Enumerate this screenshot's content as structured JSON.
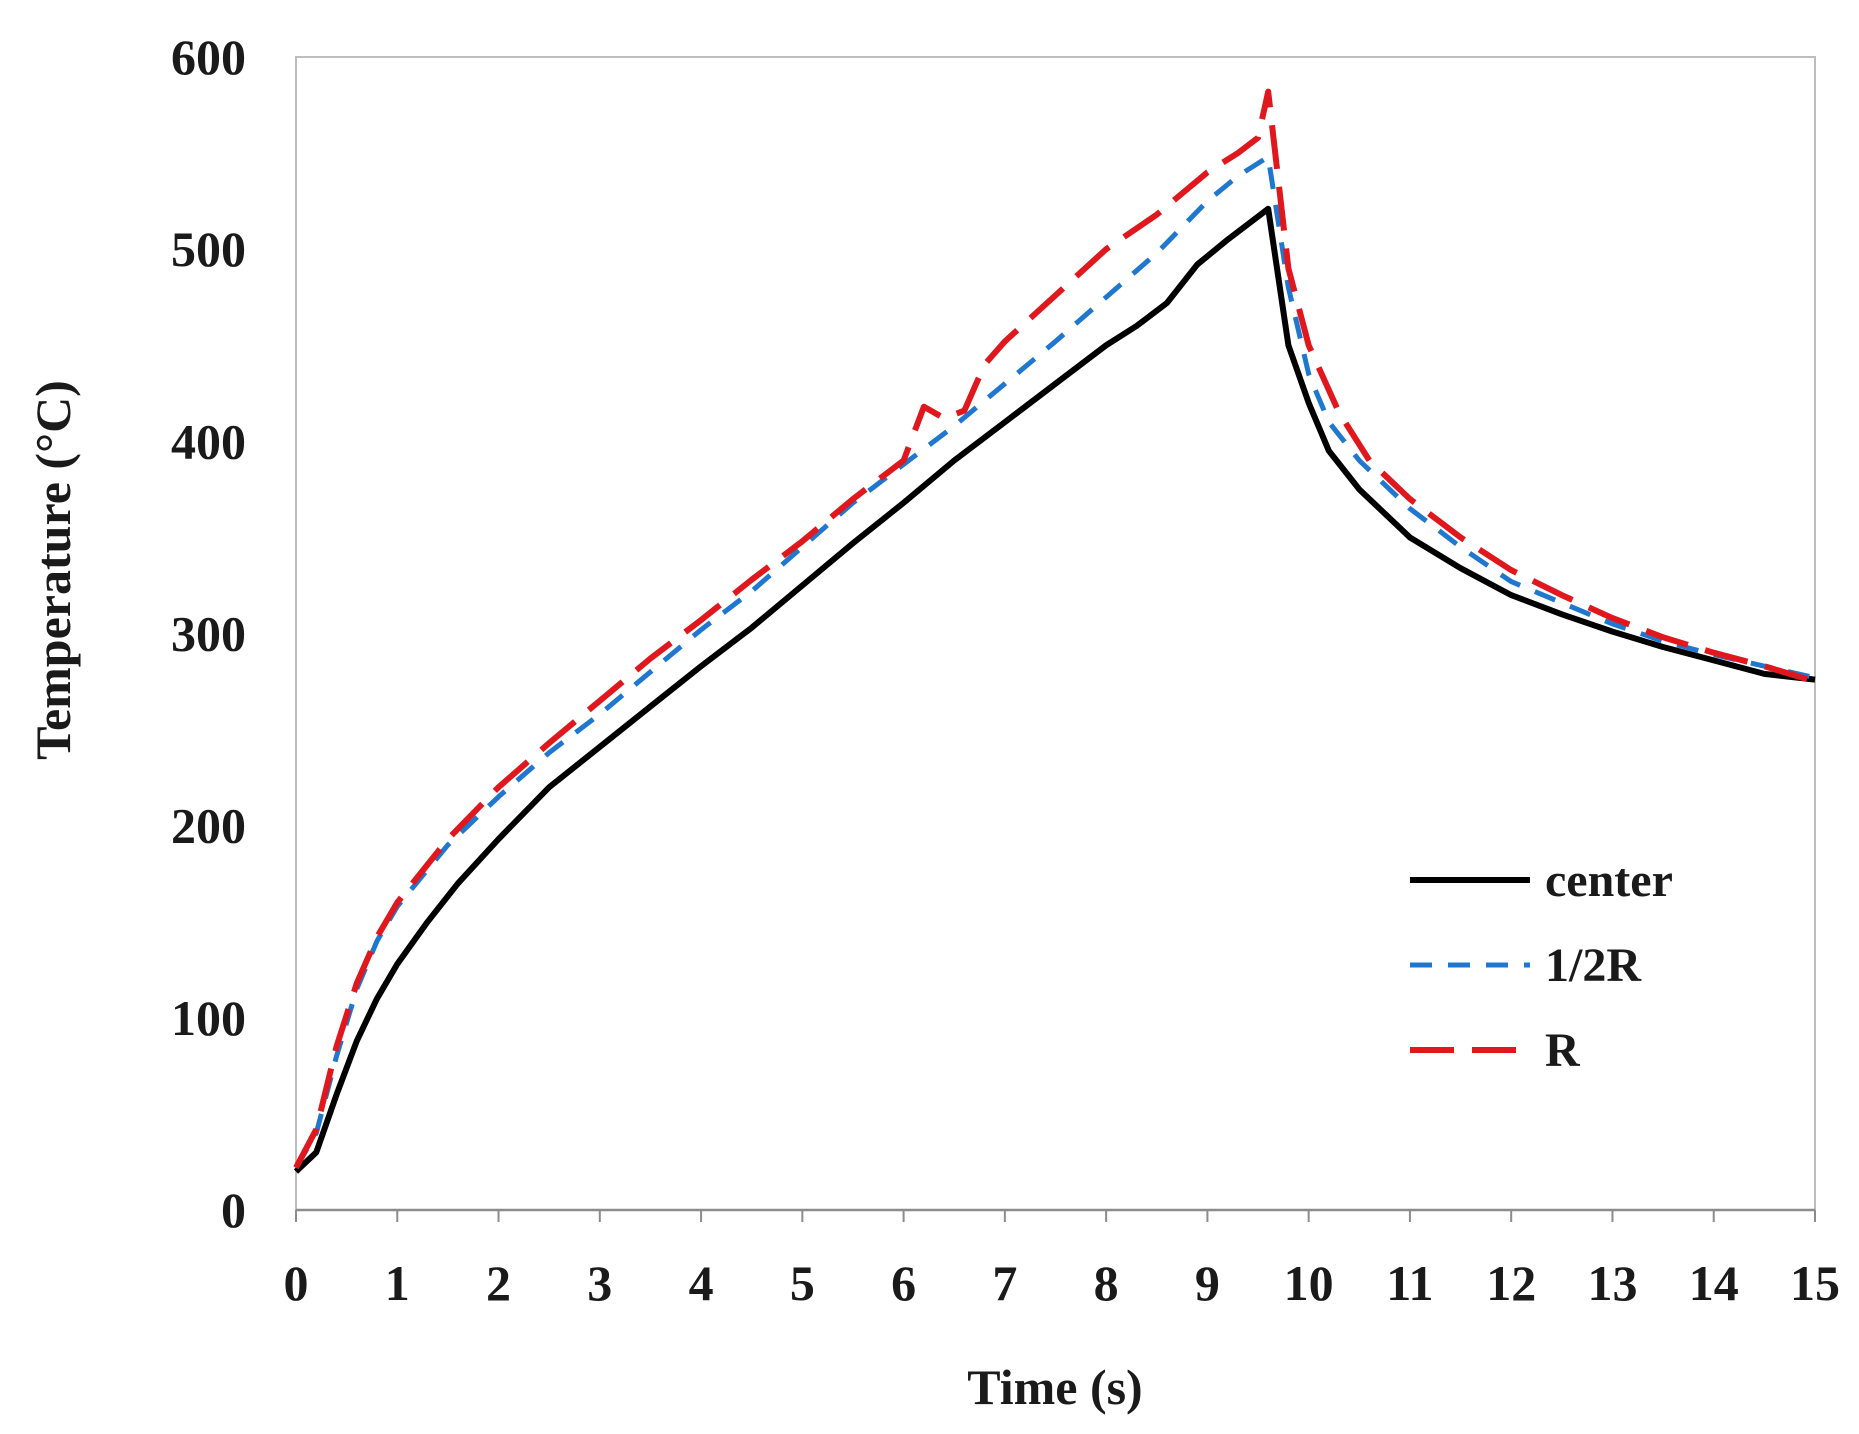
{
  "chart_data": {
    "type": "line",
    "title": "",
    "xlabel": "Time (s)",
    "ylabel": "Temperature (°C)",
    "xlim": [
      0,
      15
    ],
    "ylim": [
      0,
      600
    ],
    "x_ticks": [
      "0",
      "1",
      "2",
      "3",
      "4",
      "5",
      "6",
      "7",
      "8",
      "9",
      "10",
      "11",
      "12",
      "13",
      "14",
      "15"
    ],
    "y_ticks": [
      "0",
      "100",
      "200",
      "300",
      "400",
      "500",
      "600"
    ],
    "grid": false,
    "legend_position": "right",
    "series": [
      {
        "name": "center",
        "color": "#000000",
        "style": "solid",
        "points": [
          [
            0,
            20
          ],
          [
            0.2,
            30
          ],
          [
            0.4,
            60
          ],
          [
            0.6,
            88
          ],
          [
            0.8,
            110
          ],
          [
            1.0,
            128
          ],
          [
            1.3,
            150
          ],
          [
            1.6,
            170
          ],
          [
            2.0,
            193
          ],
          [
            2.5,
            220
          ],
          [
            3.0,
            241
          ],
          [
            3.5,
            262
          ],
          [
            4.0,
            283
          ],
          [
            4.5,
            303
          ],
          [
            5.0,
            325
          ],
          [
            5.5,
            347
          ],
          [
            6.0,
            368
          ],
          [
            6.5,
            390
          ],
          [
            7.0,
            410
          ],
          [
            7.5,
            430
          ],
          [
            8.0,
            450
          ],
          [
            8.3,
            460
          ],
          [
            8.6,
            472
          ],
          [
            8.9,
            492
          ],
          [
            9.2,
            505
          ],
          [
            9.4,
            513
          ],
          [
            9.6,
            521
          ],
          [
            9.8,
            450
          ],
          [
            10.0,
            420
          ],
          [
            10.2,
            395
          ],
          [
            10.5,
            375
          ],
          [
            11.0,
            350
          ],
          [
            11.5,
            334
          ],
          [
            12.0,
            320
          ],
          [
            12.5,
            310
          ],
          [
            13.0,
            301
          ],
          [
            13.5,
            293
          ],
          [
            14.0,
            286
          ],
          [
            14.5,
            279
          ],
          [
            15.0,
            276
          ]
        ]
      },
      {
        "name": "1/2R",
        "color": "#1f77d0",
        "style": "dashed",
        "points": [
          [
            0,
            22
          ],
          [
            0.2,
            40
          ],
          [
            0.4,
            80
          ],
          [
            0.6,
            115
          ],
          [
            0.8,
            140
          ],
          [
            1.0,
            158
          ],
          [
            1.5,
            190
          ],
          [
            2.0,
            215
          ],
          [
            2.5,
            238
          ],
          [
            3.0,
            258
          ],
          [
            3.5,
            280
          ],
          [
            4.0,
            302
          ],
          [
            4.5,
            322
          ],
          [
            5.0,
            345
          ],
          [
            5.5,
            368
          ],
          [
            6.0,
            388
          ],
          [
            6.5,
            408
          ],
          [
            7.0,
            430
          ],
          [
            7.5,
            452
          ],
          [
            8.0,
            475
          ],
          [
            8.5,
            498
          ],
          [
            9.0,
            525
          ],
          [
            9.3,
            538
          ],
          [
            9.6,
            548
          ],
          [
            9.8,
            480
          ],
          [
            10.0,
            435
          ],
          [
            10.2,
            410
          ],
          [
            10.5,
            390
          ],
          [
            11.0,
            365
          ],
          [
            11.5,
            345
          ],
          [
            12.0,
            327
          ],
          [
            12.5,
            316
          ],
          [
            13.0,
            305
          ],
          [
            13.5,
            296
          ],
          [
            14.0,
            289
          ],
          [
            14.5,
            283
          ],
          [
            15.0,
            277
          ]
        ]
      },
      {
        "name": "R",
        "color": "#e0181e",
        "style": "longdash",
        "points": [
          [
            0,
            22
          ],
          [
            0.2,
            42
          ],
          [
            0.4,
            85
          ],
          [
            0.6,
            118
          ],
          [
            0.8,
            142
          ],
          [
            1.0,
            160
          ],
          [
            1.5,
            193
          ],
          [
            2.0,
            220
          ],
          [
            2.5,
            243
          ],
          [
            3.0,
            265
          ],
          [
            3.5,
            287
          ],
          [
            4.0,
            307
          ],
          [
            4.5,
            328
          ],
          [
            5.0,
            348
          ],
          [
            5.5,
            370
          ],
          [
            6.0,
            390
          ],
          [
            6.2,
            418
          ],
          [
            6.4,
            412
          ],
          [
            6.6,
            416
          ],
          [
            6.8,
            440
          ],
          [
            7.0,
            452
          ],
          [
            7.5,
            476
          ],
          [
            8.0,
            500
          ],
          [
            8.5,
            518
          ],
          [
            9.0,
            540
          ],
          [
            9.3,
            550
          ],
          [
            9.5,
            558
          ],
          [
            9.6,
            582
          ],
          [
            9.8,
            490
          ],
          [
            10.0,
            450
          ],
          [
            10.3,
            415
          ],
          [
            10.6,
            390
          ],
          [
            11.0,
            370
          ],
          [
            11.5,
            350
          ],
          [
            12.0,
            333
          ],
          [
            12.5,
            320
          ],
          [
            13.0,
            308
          ],
          [
            13.5,
            298
          ],
          [
            14.0,
            290
          ],
          [
            14.5,
            283
          ],
          [
            15.0,
            275
          ]
        ]
      }
    ]
  }
}
